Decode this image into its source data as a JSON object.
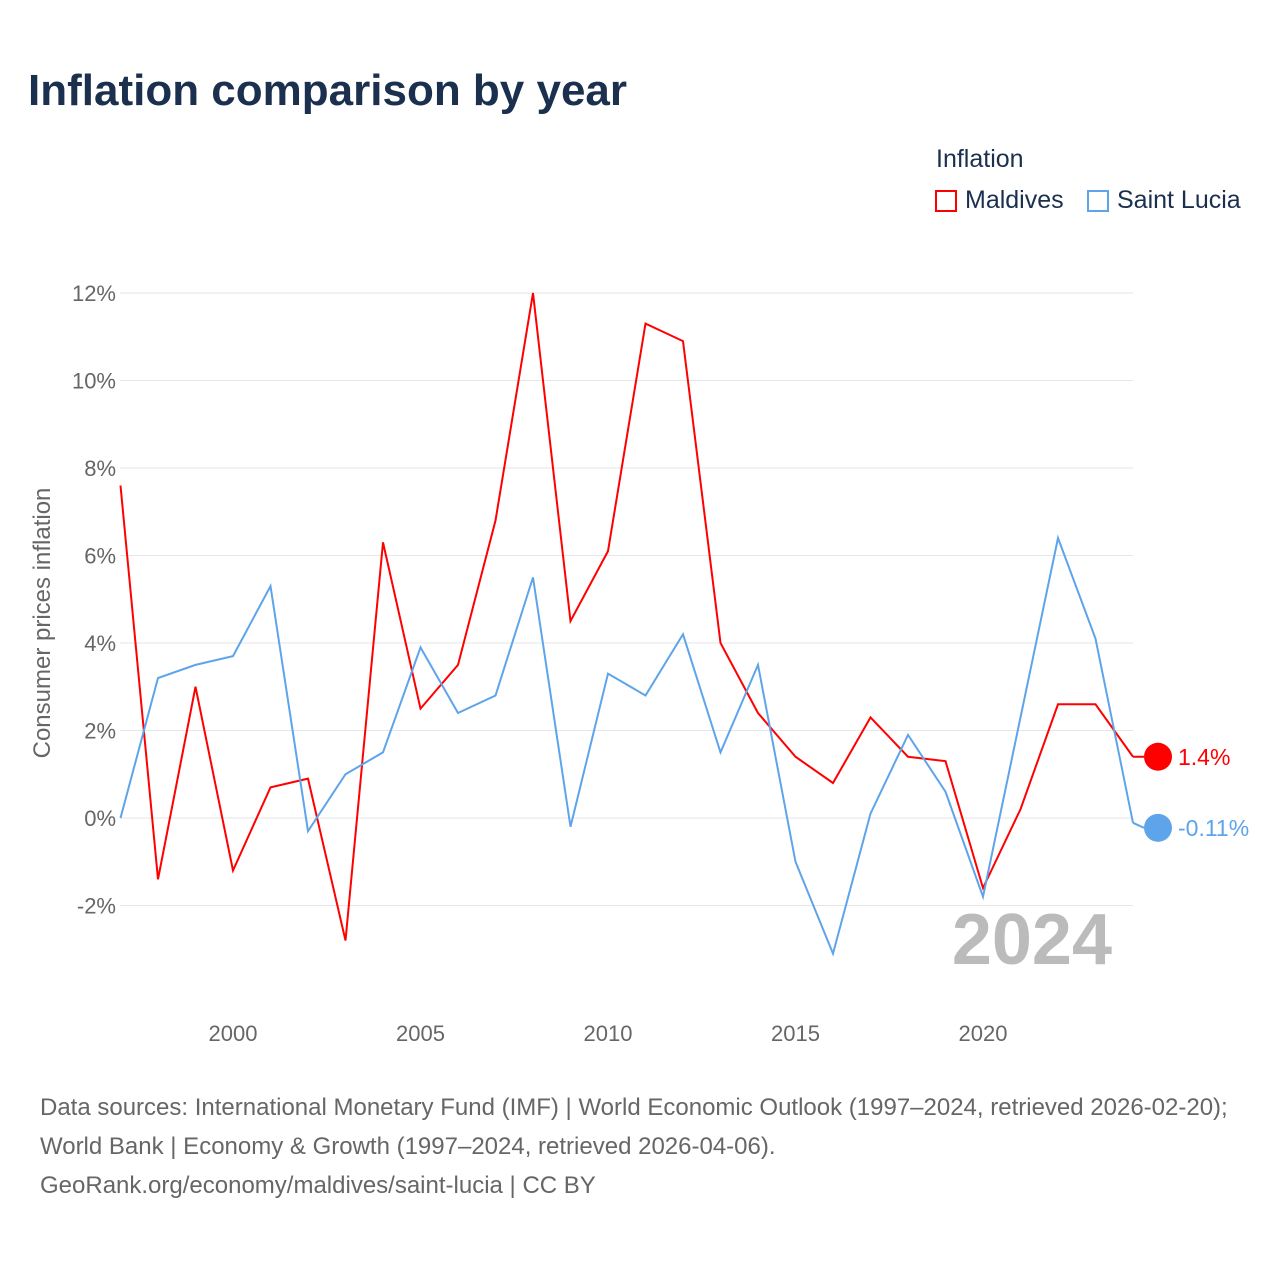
{
  "title": "Inflation comparison by year",
  "legend": {
    "title": "Inflation",
    "items": [
      "Maldives",
      "Saint Lucia"
    ]
  },
  "year_watermark": "2024",
  "source_lines": [
    "Data sources: International Monetary Fund (IMF) | World Economic Outlook (1997–2024, retrieved 2026-02-20); World Bank | Economy & Growth (1997–2024, retrieved 2026-04-06).",
    "GeoRank.org/economy/maldives/saint-lucia | CC BY"
  ],
  "chart_data": {
    "type": "line",
    "ylabel": "Consumer prices inflation",
    "ylim": [
      -4,
      12.5
    ],
    "xlim": [
      1997,
      2024
    ],
    "yticks": [
      -2,
      0,
      2,
      4,
      6,
      8,
      10,
      12
    ],
    "ytick_labels": [
      "-2%",
      "0%",
      "2%",
      "4%",
      "6%",
      "8%",
      "10%",
      "12%"
    ],
    "xticks": [
      2000,
      2005,
      2010,
      2015,
      2020
    ],
    "xtick_labels": [
      "2000",
      "2005",
      "2010",
      "2015",
      "2020"
    ],
    "x": [
      1997,
      1998,
      1999,
      2000,
      2001,
      2002,
      2003,
      2004,
      2005,
      2006,
      2007,
      2008,
      2009,
      2010,
      2011,
      2012,
      2013,
      2014,
      2015,
      2016,
      2017,
      2018,
      2019,
      2020,
      2021,
      2022,
      2023,
      2024
    ],
    "series": [
      {
        "name": "Maldives",
        "color": "#ff0000",
        "end_label": "1.4%",
        "values": [
          7.6,
          -1.4,
          3.0,
          -1.2,
          0.7,
          0.9,
          -2.8,
          6.3,
          2.5,
          3.5,
          6.8,
          12.0,
          4.5,
          6.1,
          11.3,
          10.9,
          4.0,
          2.4,
          1.4,
          0.8,
          2.3,
          1.4,
          1.3,
          -1.6,
          0.2,
          2.6,
          2.6,
          1.4
        ]
      },
      {
        "name": "Saint Lucia",
        "color": "#5ea4eb",
        "end_label": "-0.11%",
        "values": [
          0.0,
          3.2,
          3.5,
          3.7,
          5.3,
          -0.3,
          1.0,
          1.5,
          3.9,
          2.4,
          2.8,
          5.5,
          -0.2,
          3.3,
          2.8,
          4.2,
          1.5,
          3.5,
          -1.0,
          -3.1,
          0.1,
          1.9,
          0.6,
          -1.8,
          2.3,
          6.4,
          4.1,
          -0.11
        ]
      }
    ]
  }
}
